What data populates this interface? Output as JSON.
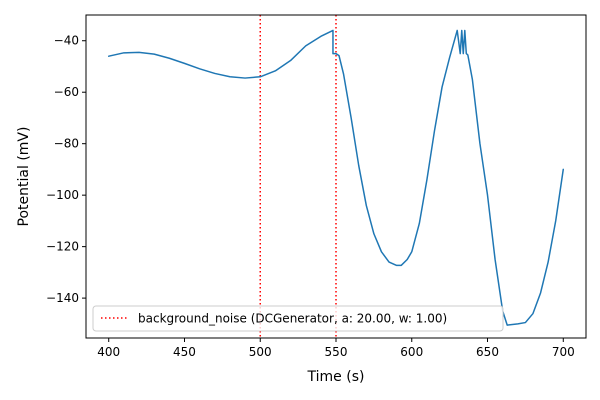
{
  "chart_data": {
    "type": "line",
    "xlabel": "Time (s)",
    "ylabel": "Potential (mV)",
    "xlim": [
      385,
      715
    ],
    "ylim": [
      -155.5,
      -30.0
    ],
    "x_ticks": [
      400,
      450,
      500,
      550,
      600,
      650,
      700
    ],
    "y_ticks": [
      -140,
      -120,
      -100,
      -80,
      -60,
      -40
    ],
    "grid": false,
    "legend_placement": "lower-left",
    "series": [
      {
        "color": "#1f77b4",
        "x": [
          400,
          410,
          420,
          430,
          440,
          450,
          460,
          470,
          480,
          490,
          500,
          510,
          520,
          530,
          540,
          548,
          548,
          550,
          552,
          555,
          560,
          565,
          570,
          575,
          580,
          585,
          590,
          593,
          597,
          600,
          605,
          610,
          615,
          620,
          625,
          630,
          632,
          633,
          634,
          635,
          636,
          637,
          640,
          645,
          650,
          655,
          660,
          663,
          670,
          675,
          680,
          685,
          690,
          695,
          700
        ],
        "y": [
          -46.0,
          -44.7,
          -44.5,
          -45.2,
          -46.8,
          -48.8,
          -50.9,
          -52.7,
          -54.0,
          -54.5,
          -54.0,
          -51.7,
          -47.7,
          -42.0,
          -38.3,
          -36.0,
          -45.0,
          -45.0,
          -45.8,
          -53.0,
          -70.0,
          -88.5,
          -104.0,
          -115.0,
          -122.0,
          -126.0,
          -127.3,
          -127.3,
          -125.0,
          -122.0,
          -111.0,
          -94.0,
          -75.0,
          -58.0,
          -46.5,
          -36.0,
          -45.0,
          -36.0,
          -45.0,
          -36.0,
          -45.0,
          -45.5,
          -55.0,
          -80.0,
          -100.0,
          -125.0,
          -145.0,
          -150.5,
          -150.0,
          -149.5,
          -146.0,
          -138.0,
          -126.0,
          -110.0,
          -90.0
        ]
      }
    ],
    "vlines": [
      {
        "x": 500,
        "color": "#ff0000",
        "style": "dotted"
      },
      {
        "x": 550,
        "color": "#ff0000",
        "style": "dotted"
      }
    ],
    "legend": [
      {
        "label": "background_noise (DCGenerator, a: 20.00, w: 1.00)",
        "color": "#ff0000",
        "style": "dotted"
      }
    ]
  }
}
